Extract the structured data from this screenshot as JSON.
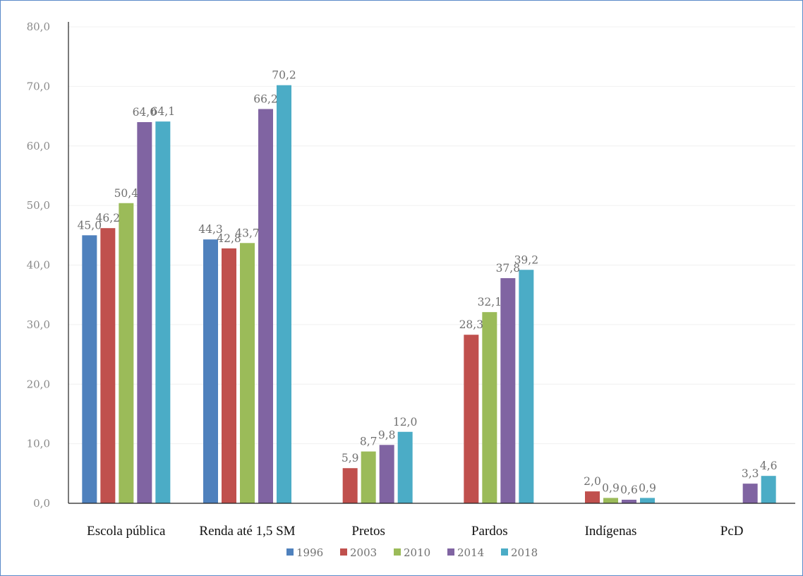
{
  "chart_data": {
    "type": "bar",
    "categories": [
      "Escola pública",
      "Renda até 1,5 SM",
      "Pretos",
      "Pardos",
      "Indígenas",
      "PcD"
    ],
    "ylim": [
      0,
      80
    ],
    "yticks": [
      "0,0",
      "10,0",
      "20,0",
      "30,0",
      "40,0",
      "50,0",
      "60,0",
      "70,0",
      "80,0"
    ],
    "grid": true,
    "legend_position": "bottom",
    "series": [
      {
        "name": "1996",
        "color": "#4f81bd",
        "values": [
          45.0,
          44.3,
          null,
          null,
          null,
          null
        ],
        "labels": [
          "45,0",
          "44,3",
          "",
          "",
          "",
          ""
        ]
      },
      {
        "name": "2003",
        "color": "#c0504d",
        "values": [
          46.2,
          42.8,
          5.9,
          28.3,
          2.0,
          null
        ],
        "labels": [
          "46,2",
          "42,8",
          "5,9",
          "28,3",
          "2,0",
          ""
        ]
      },
      {
        "name": "2010",
        "color": "#9bbb59",
        "values": [
          50.4,
          43.7,
          8.7,
          32.1,
          0.9,
          null
        ],
        "labels": [
          "50,4",
          "43,7",
          "8,7",
          "32,1",
          "0,9",
          ""
        ]
      },
      {
        "name": "2014",
        "color": "#8064a2",
        "values": [
          64.0,
          66.2,
          9.8,
          37.8,
          0.6,
          3.3
        ],
        "labels": [
          "64,0",
          "66,2",
          "9,8",
          "37,8",
          "0,6",
          "3,3"
        ]
      },
      {
        "name": "2018",
        "color": "#4bacc6",
        "values": [
          64.1,
          70.2,
          12.0,
          39.2,
          0.9,
          4.6
        ],
        "labels": [
          "64,1",
          "70,2",
          "12,0",
          "39,2",
          "0,9",
          "4,6"
        ]
      }
    ]
  }
}
